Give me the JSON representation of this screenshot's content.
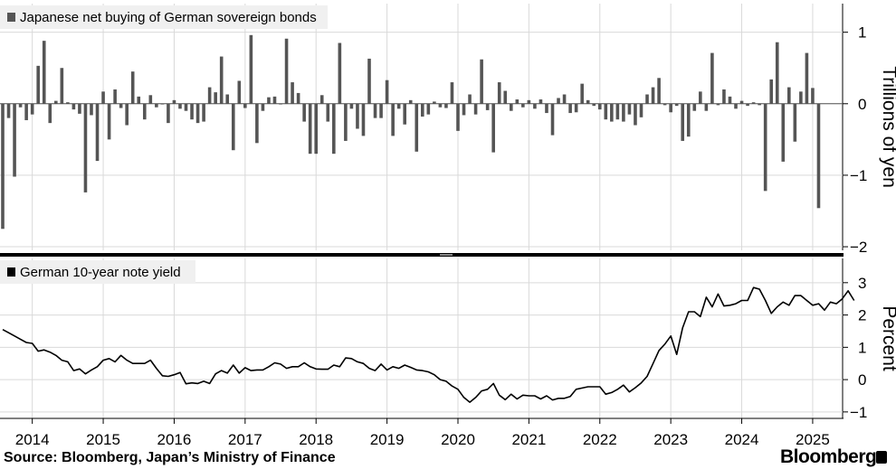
{
  "source": "Source: Bloomberg, Japan’s Ministry of Finance",
  "brand": "Bloomberg",
  "chart_data": [
    {
      "type": "bar",
      "legend": "Japanese net buying of German sovereign bonds",
      "ylabel": "Trillions of yen",
      "ylim": [
        -2.05,
        1.4
      ],
      "yticks": [
        1,
        0,
        -1,
        -2
      ],
      "color": "#555555",
      "start": "2013-08",
      "values": [
        -1.75,
        -0.2,
        -1.02,
        -0.05,
        -0.23,
        -0.15,
        0.53,
        0.88,
        -0.27,
        0.04,
        0.5,
        0.02,
        -0.08,
        -0.14,
        -1.24,
        -0.16,
        -0.8,
        0.17,
        -0.5,
        0.2,
        -0.06,
        -0.3,
        0.45,
        0.1,
        -0.22,
        0.12,
        -0.05,
        -0.01,
        -0.27,
        0.05,
        -0.07,
        -0.1,
        -0.22,
        -0.27,
        -0.25,
        0.23,
        0.16,
        0.66,
        0.13,
        -0.65,
        0.32,
        -0.06,
        0.96,
        -0.55,
        -0.1,
        0.09,
        0.1,
        0.0,
        0.91,
        0.3,
        0.15,
        -0.25,
        -0.7,
        -0.7,
        0.12,
        -0.25,
        -0.7,
        0.85,
        -0.52,
        -0.07,
        -0.35,
        -0.45,
        0.63,
        -0.2,
        -0.2,
        0.33,
        -0.45,
        -0.07,
        -0.29,
        0.05,
        -0.67,
        -0.18,
        -0.15,
        0.03,
        -0.05,
        -0.06,
        0.3,
        -0.38,
        -0.16,
        0.13,
        -0.15,
        0.62,
        -0.09,
        -0.68,
        0.3,
        0.18,
        -0.1,
        0.06,
        -0.05,
        0.05,
        -0.07,
        0.06,
        -0.13,
        -0.44,
        0.08,
        0.13,
        -0.13,
        -0.12,
        0.28,
        0.05,
        -0.03,
        -0.08,
        -0.22,
        -0.25,
        -0.22,
        -0.25,
        -0.15,
        -0.3,
        -0.19,
        0.13,
        0.23,
        0.36,
        -0.02,
        -0.12,
        -0.03,
        -0.52,
        -0.46,
        -0.1,
        0.17,
        -0.1,
        0.71,
        -0.02,
        0.2,
        0.1,
        -0.07,
        0.04,
        -0.03,
        0.02,
        -0.02,
        -1.22,
        0.34,
        0.86,
        -0.81,
        0.23,
        -0.53,
        0.17,
        0.71,
        0.22,
        -1.46
      ]
    },
    {
      "type": "line",
      "legend": "German 10-year note yield",
      "ylabel": "Percent",
      "ylim": [
        -1.2,
        3.75
      ],
      "yticks": [
        3,
        2,
        1,
        0,
        -1
      ],
      "color": "#000000",
      "start": "2013-08",
      "values": [
        1.55,
        1.45,
        1.35,
        1.25,
        1.15,
        1.12,
        0.88,
        0.92,
        0.85,
        0.75,
        0.6,
        0.55,
        0.28,
        0.33,
        0.18,
        0.3,
        0.4,
        0.6,
        0.65,
        0.55,
        0.75,
        0.6,
        0.5,
        0.5,
        0.5,
        0.6,
        0.35,
        0.12,
        0.1,
        0.15,
        0.22,
        -0.13,
        -0.1,
        -0.12,
        -0.05,
        -0.12,
        0.18,
        0.28,
        0.2,
        0.45,
        0.2,
        0.37,
        0.28,
        0.3,
        0.3,
        0.4,
        0.52,
        0.48,
        0.35,
        0.4,
        0.4,
        0.52,
        0.4,
        0.33,
        0.32,
        0.32,
        0.45,
        0.4,
        0.67,
        0.65,
        0.55,
        0.5,
        0.35,
        0.28,
        0.48,
        0.3,
        0.4,
        0.35,
        0.45,
        0.38,
        0.3,
        0.28,
        0.24,
        0.15,
        0.0,
        -0.05,
        -0.2,
        -0.3,
        -0.55,
        -0.7,
        -0.55,
        -0.35,
        -0.3,
        -0.12,
        -0.48,
        -0.62,
        -0.45,
        -0.6,
        -0.48,
        -0.5,
        -0.5,
        -0.6,
        -0.5,
        -0.63,
        -0.58,
        -0.58,
        -0.52,
        -0.3,
        -0.26,
        -0.22,
        -0.22,
        -0.22,
        -0.45,
        -0.4,
        -0.3,
        -0.17,
        -0.38,
        -0.25,
        -0.1,
        0.1,
        0.5,
        0.9,
        1.1,
        1.35,
        0.78,
        1.6,
        2.1,
        2.1,
        1.95,
        2.55,
        2.25,
        2.65,
        2.28,
        2.3,
        2.35,
        2.45,
        2.45,
        2.85,
        2.8,
        2.45,
        2.05,
        2.25,
        2.4,
        2.3,
        2.6,
        2.6,
        2.45,
        2.3,
        2.35,
        2.15,
        2.4,
        2.35,
        2.5,
        2.75,
        2.45
      ]
    }
  ],
  "xaxis": {
    "start": "2013-08",
    "end": "2025-03",
    "ticks": [
      {
        "label": "2014",
        "date": "2014-01"
      },
      {
        "label": "2015",
        "date": "2015-01"
      },
      {
        "label": "2016",
        "date": "2016-01"
      },
      {
        "label": "2017",
        "date": "2017-01"
      },
      {
        "label": "2018",
        "date": "2018-01"
      },
      {
        "label": "2019",
        "date": "2019-01"
      },
      {
        "label": "2020",
        "date": "2020-01"
      },
      {
        "label": "2021",
        "date": "2021-01"
      },
      {
        "label": "2022",
        "date": "2022-01"
      },
      {
        "label": "2023",
        "date": "2023-01"
      },
      {
        "label": "2024",
        "date": "2024-01"
      },
      {
        "label": "2025",
        "date": "2025-01"
      }
    ]
  },
  "grid": true
}
